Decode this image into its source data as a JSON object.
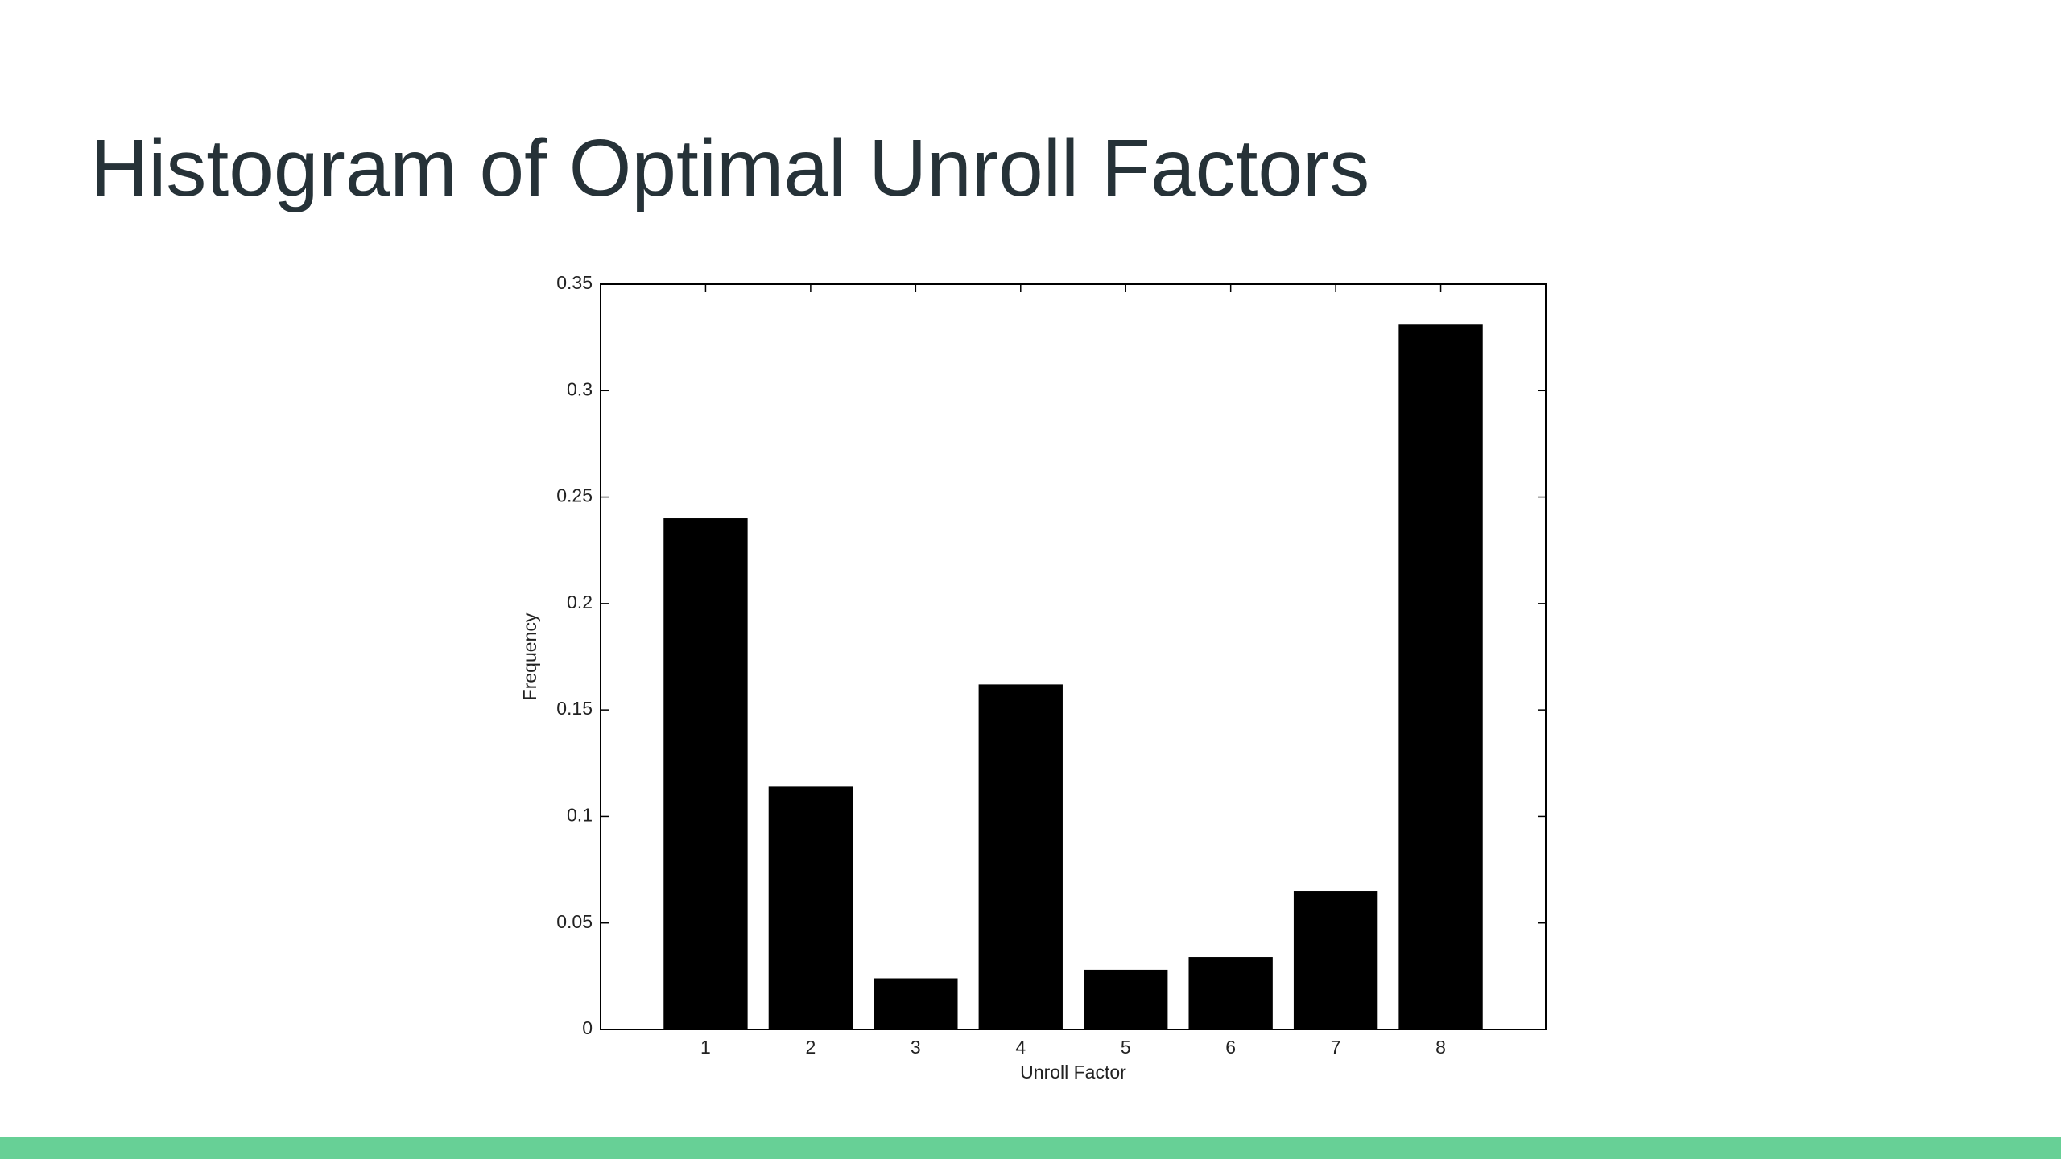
{
  "chart_data": {
    "type": "bar",
    "title": "Histogram of Optimal Unroll Factors",
    "x_label": "Unroll Factor",
    "y_label": "Frequency",
    "x": [
      1,
      2,
      3,
      4,
      5,
      6,
      7,
      8
    ],
    "values": [
      0.24,
      0.114,
      0.024,
      0.162,
      0.028,
      0.034,
      0.065,
      0.331
    ],
    "color": "#000000",
    "xlim": [
      0,
      9
    ],
    "xticks": [
      1,
      2,
      3,
      4,
      5,
      6,
      7,
      8
    ],
    "ylim": [
      0,
      0.35
    ],
    "yticks": [
      0,
      0.05,
      0.1,
      0.15,
      0.2,
      0.25,
      0.3,
      0.35
    ],
    "grid": false
  }
}
